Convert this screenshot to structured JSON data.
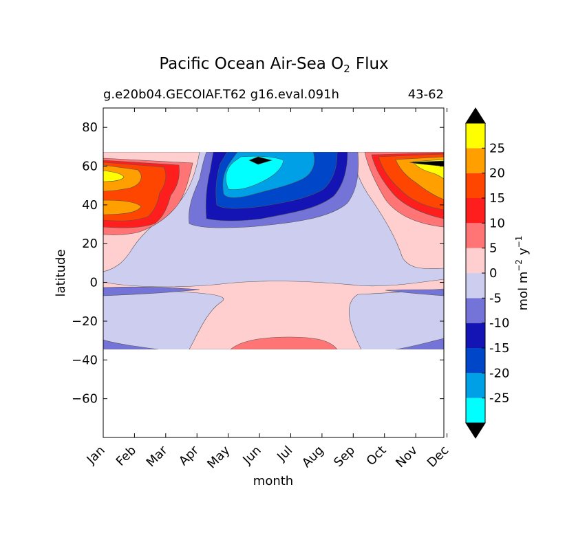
{
  "chart_data": {
    "type": "heatmap",
    "title_main": "Pacific Ocean Air-Sea O",
    "title_sub": "2",
    "title_end": "Flux",
    "subtitle_left": "g.e20b04.GECOIAF.T62 g16.eval.091h",
    "subtitle_right": "43-62",
    "xlabel": "month",
    "ylabel": "latitude",
    "x_ticks": [
      "Jan",
      "Feb",
      "Mar",
      "Apr",
      "May",
      "Jun",
      "Jul",
      "Aug",
      "Sep",
      "Oct",
      "Nov",
      "Dec"
    ],
    "y_ticks": [
      "80",
      "60",
      "40",
      "20",
      "0",
      "−20",
      "−40",
      "−60"
    ],
    "y_tick_values": [
      80,
      60,
      40,
      20,
      0,
      -20,
      -40,
      -60
    ],
    "ylim": [
      -80,
      90
    ],
    "data_lat_range": [
      -34,
      67
    ],
    "colorbar": {
      "label": "mol m",
      "label_sup1": "−2",
      "label_mid": "y",
      "label_sup2": "−1",
      "colors": [
        "#00ffff",
        "#00a0e6",
        "#0046c8",
        "#1414b4",
        "#7474d8",
        "#cccdef",
        "#ffcfcf",
        "#ff7474",
        "#ff1e1e",
        "#ff4600",
        "#ffa000",
        "#ffff00"
      ],
      "ticks": [
        "-25",
        "-20",
        "-15",
        "-10",
        "-5",
        "0",
        "5",
        "10",
        "15",
        "20",
        "25"
      ],
      "under_color": "#000000",
      "over_color": "#000000"
    }
  }
}
